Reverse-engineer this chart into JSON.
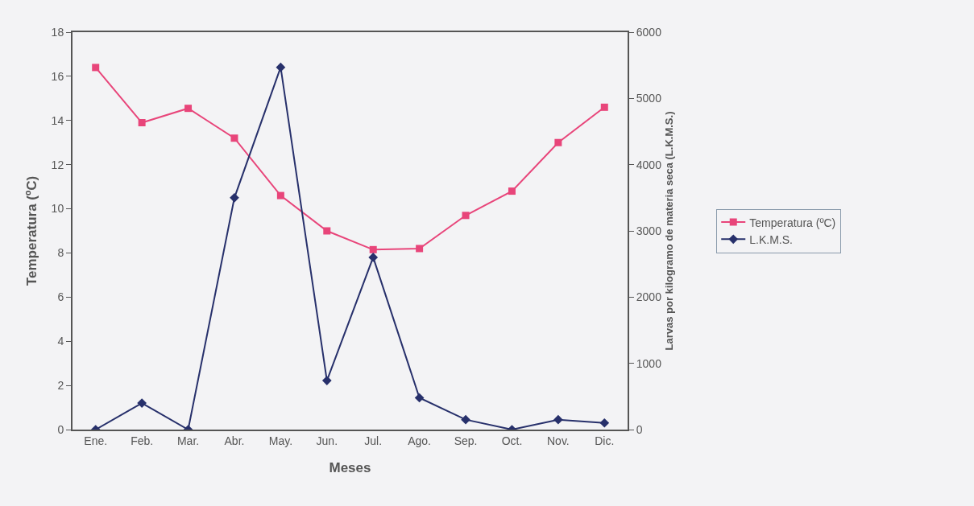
{
  "chart_data": {
    "type": "line",
    "xlabel": "Meses",
    "ylabel": "Temperatura (ºC)",
    "y2label": "Larvas por kilogramo de materia seca (L.K.M.S.)",
    "categories": [
      "Ene.",
      "Feb.",
      "Mar.",
      "Abr.",
      "May.",
      "Jun.",
      "Jul.",
      "Ago.",
      "Sep.",
      "Oct.",
      "Nov.",
      "Dic."
    ],
    "series": [
      {
        "name": "Temperatura (ºC)",
        "color": "#e8457a",
        "marker": "square",
        "values": [
          16.4,
          13.9,
          14.55,
          13.2,
          10.6,
          9.0,
          8.15,
          8.2,
          9.7,
          10.8,
          13.0,
          14.6
        ]
      },
      {
        "name": "L.K.M.S.",
        "color": "#27306b",
        "marker": "diamond",
        "axis": "y2",
        "values": [
          0,
          400,
          0,
          3500,
          5470,
          740,
          2600,
          480,
          150,
          0,
          150,
          100
        ]
      }
    ],
    "ylim": [
      0,
      18
    ],
    "yticks": [
      0,
      2,
      4,
      6,
      8,
      10,
      12,
      14,
      16,
      18
    ],
    "y2lim": [
      0,
      6000
    ],
    "y2ticks": [
      0,
      1000,
      2000,
      3000,
      4000,
      5000,
      6000
    ],
    "grid": false,
    "legend": "right"
  }
}
